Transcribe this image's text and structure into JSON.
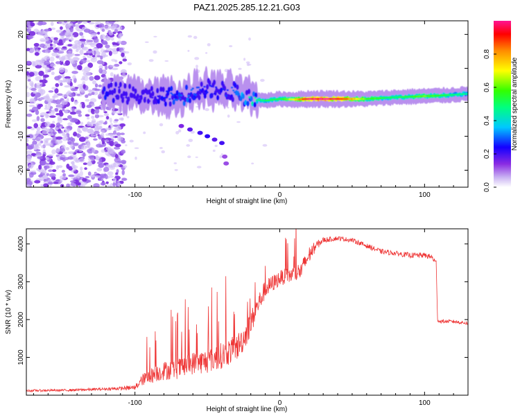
{
  "figure_title": "PAZ1.2025.285.12.21.G03",
  "chart_data": [
    {
      "type": "heatmap",
      "title": "PAZ1.2025.285.12.21.G03",
      "xlabel": "Height of straight line (km)",
      "ylabel": "Frequency (Hz)",
      "xlim": [
        -175,
        130
      ],
      "ylim": [
        -25,
        24
      ],
      "x_ticks": [
        -100,
        0,
        100
      ],
      "y_ticks": [
        -20,
        -10,
        0,
        10,
        20
      ],
      "colorbar": {
        "label": "Normalized spectral amplitude",
        "range": [
          0,
          1
        ],
        "ticks": [
          "0.0",
          "0.2",
          "0.4",
          "0.6",
          "0.8"
        ]
      },
      "ridge": {
        "x": [
          -120,
          -110,
          -100,
          -90,
          -80,
          -70,
          -60,
          -50,
          -40,
          -30,
          -20,
          -10,
          0,
          10,
          20,
          40,
          60,
          80,
          100,
          120,
          130
        ],
        "freq": [
          2.5,
          3,
          2,
          1.5,
          2,
          1.5,
          3,
          4,
          3.5,
          3,
          1,
          0.5,
          1,
          0.8,
          1,
          1,
          1,
          1.5,
          1.8,
          2.2,
          2.5
        ],
        "amplitude": [
          0.25,
          0.2,
          0.2,
          0.2,
          0.25,
          0.3,
          0.3,
          0.25,
          0.25,
          0.3,
          0.45,
          0.5,
          0.55,
          0.7,
          1.0,
          0.95,
          0.6,
          0.5,
          0.6,
          0.5,
          0.45
        ]
      },
      "noise_region_x": [
        -175,
        -107
      ]
    },
    {
      "type": "line",
      "xlabel": "Height of straight line (km)",
      "ylabel": "SNR (10 * v/v)",
      "xlim": [
        -175,
        130
      ],
      "ylim": [
        0,
        4400
      ],
      "x_ticks": [
        -100,
        0,
        100
      ],
      "y_ticks": [
        1000,
        2000,
        3000,
        4000
      ],
      "series": [
        {
          "name": "SNR",
          "color": "#ee3333",
          "x": [
            -175,
            -150,
            -130,
            -110,
            -100,
            -95,
            -90,
            -80,
            -70,
            -60,
            -50,
            -40,
            -30,
            -25,
            -20,
            -15,
            -10,
            0,
            10,
            15,
            20,
            25,
            30,
            40,
            50,
            60,
            70,
            80,
            90,
            100,
            105,
            108,
            109,
            110,
            120,
            130
          ],
          "values": [
            120,
            130,
            150,
            180,
            200,
            400,
            500,
            650,
            700,
            850,
            900,
            1050,
            1250,
            1500,
            1900,
            2400,
            2800,
            3100,
            3200,
            3300,
            3700,
            3950,
            4100,
            4150,
            4100,
            3950,
            3800,
            3750,
            3700,
            3700,
            3650,
            3500,
            2000,
            1950,
            1950,
            1900
          ],
          "noise": [
            60,
            60,
            70,
            90,
            150,
            300,
            400,
            500,
            550,
            600,
            650,
            700,
            700,
            700,
            650,
            550,
            500,
            400,
            450,
            500,
            450,
            250,
            150,
            120,
            120,
            130,
            130,
            130,
            140,
            140,
            150,
            150,
            100,
            90,
            90,
            90
          ]
        }
      ]
    }
  ]
}
